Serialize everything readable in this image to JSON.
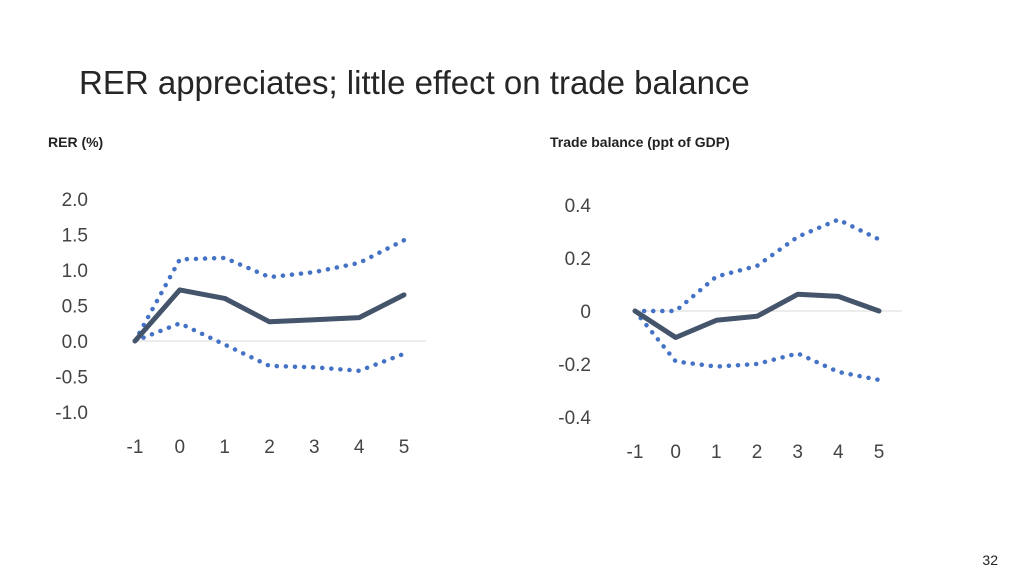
{
  "slide": {
    "title": "RER appreciates; little effect on trade balance",
    "page_number": "32"
  },
  "colors": {
    "point_estimate": "#44546a",
    "confidence_band": "#4472c4",
    "zero_line": "#d9d9d9"
  },
  "chart_data": [
    {
      "type": "line",
      "title": "RER (%)",
      "x": [
        -1,
        0,
        1,
        2,
        3,
        4,
        5
      ],
      "x_tick_labels": [
        "-1",
        "0",
        "1",
        "2",
        "3",
        "4",
        "5"
      ],
      "y_ticks": [
        2.0,
        1.5,
        1.0,
        0.5,
        0.0,
        -0.5,
        -1.0
      ],
      "y_tick_labels": [
        "2.0",
        "1.5",
        "1.0",
        "0.5",
        "0.0",
        "-0.5",
        "-1.0"
      ],
      "ylim": [
        -1.0,
        2.0
      ],
      "grid": false,
      "series": [
        {
          "style": "solid",
          "values": [
            0.0,
            0.72,
            0.6,
            0.27,
            0.3,
            0.33,
            0.65
          ]
        },
        {
          "style": "dotted",
          "values": [
            0.0,
            1.15,
            1.17,
            0.9,
            0.97,
            1.1,
            1.42
          ]
        },
        {
          "style": "dotted",
          "values": [
            0.0,
            0.25,
            -0.05,
            -0.35,
            -0.37,
            -0.42,
            -0.18
          ]
        }
      ]
    },
    {
      "type": "line",
      "title": "Trade balance (ppt of GDP)",
      "x": [
        -1,
        0,
        1,
        2,
        3,
        4,
        5
      ],
      "x_tick_labels": [
        "-1",
        "0",
        "1",
        "2",
        "3",
        "4",
        "5"
      ],
      "y_ticks": [
        0.4,
        0.2,
        0,
        -0.2,
        -0.4
      ],
      "y_tick_labels": [
        "0.4",
        "0.2",
        "0",
        "-0.2",
        "-0.4"
      ],
      "ylim": [
        -0.4,
        0.4
      ],
      "grid": false,
      "series": [
        {
          "style": "solid",
          "values": [
            0.0,
            -0.1,
            -0.035,
            -0.02,
            0.063,
            0.055,
            0.0
          ]
        },
        {
          "style": "dotted",
          "values": [
            0.0,
            0.0,
            0.13,
            0.17,
            0.28,
            0.345,
            0.27
          ]
        },
        {
          "style": "dotted",
          "values": [
            0.0,
            -0.19,
            -0.21,
            -0.2,
            -0.16,
            -0.23,
            -0.26
          ]
        }
      ]
    }
  ]
}
